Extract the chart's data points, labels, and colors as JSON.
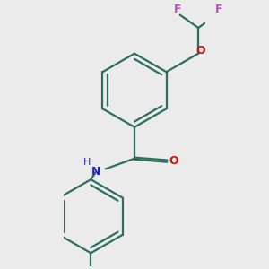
{
  "background_color": "#ebebeb",
  "bond_color": "#2d6e5e",
  "N_color": "#2222cc",
  "O_color": "#cc1111",
  "F_color": "#cc44cc",
  "line_width": 1.6,
  "dbo": 0.018,
  "figsize": [
    3.0,
    3.0
  ],
  "dpi": 100,
  "xlim": [
    -1.2,
    1.5
  ],
  "ylim": [
    -2.8,
    2.2
  ]
}
